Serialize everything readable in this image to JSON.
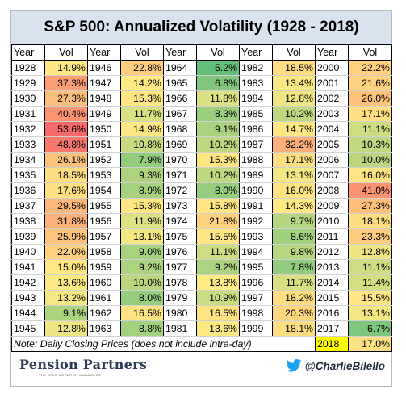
{
  "title": "S&P 500: Annualized Volatility (1928 - 2018)",
  "headers": {
    "year": "Year",
    "vol": "Vol"
  },
  "columns": [
    [
      [
        "1928",
        "14.9%"
      ],
      [
        "1929",
        "37.3%"
      ],
      [
        "1930",
        "27.3%"
      ],
      [
        "1931",
        "40.4%"
      ],
      [
        "1932",
        "53.6%"
      ],
      [
        "1933",
        "48.8%"
      ],
      [
        "1934",
        "26.1%"
      ],
      [
        "1935",
        "18.5%"
      ],
      [
        "1936",
        "17.6%"
      ],
      [
        "1937",
        "29.5%"
      ],
      [
        "1938",
        "31.8%"
      ],
      [
        "1939",
        "25.9%"
      ],
      [
        "1940",
        "22.0%"
      ],
      [
        "1941",
        "15.0%"
      ],
      [
        "1942",
        "13.6%"
      ],
      [
        "1943",
        "13.2%"
      ],
      [
        "1944",
        "9.1%"
      ],
      [
        "1945",
        "12.8%"
      ]
    ],
    [
      [
        "1946",
        "22.8%"
      ],
      [
        "1947",
        "14.2%"
      ],
      [
        "1948",
        "15.3%"
      ],
      [
        "1949",
        "11.7%"
      ],
      [
        "1950",
        "14.9%"
      ],
      [
        "1951",
        "10.8%"
      ],
      [
        "1952",
        "7.9%"
      ],
      [
        "1953",
        "9.3%"
      ],
      [
        "1954",
        "8.9%"
      ],
      [
        "1955",
        "15.3%"
      ],
      [
        "1956",
        "11.9%"
      ],
      [
        "1957",
        "13.1%"
      ],
      [
        "1958",
        "9.0%"
      ],
      [
        "1959",
        "9.2%"
      ],
      [
        "1960",
        "10.0%"
      ],
      [
        "1961",
        "8.0%"
      ],
      [
        "1962",
        "16.5%"
      ],
      [
        "1963",
        "8.8%"
      ]
    ],
    [
      [
        "1964",
        "5.2%"
      ],
      [
        "1965",
        "6.8%"
      ],
      [
        "1966",
        "11.8%"
      ],
      [
        "1967",
        "8.3%"
      ],
      [
        "1968",
        "9.1%"
      ],
      [
        "1969",
        "10.2%"
      ],
      [
        "1970",
        "15.3%"
      ],
      [
        "1971",
        "10.2%"
      ],
      [
        "1972",
        "8.0%"
      ],
      [
        "1973",
        "15.8%"
      ],
      [
        "1974",
        "21.8%"
      ],
      [
        "1975",
        "15.5%"
      ],
      [
        "1976",
        "11.1%"
      ],
      [
        "1977",
        "9.2%"
      ],
      [
        "1978",
        "13.8%"
      ],
      [
        "1979",
        "10.9%"
      ],
      [
        "1980",
        "16.5%"
      ],
      [
        "1981",
        "13.6%"
      ]
    ],
    [
      [
        "1982",
        "18.5%"
      ],
      [
        "1983",
        "13.4%"
      ],
      [
        "1984",
        "12.8%"
      ],
      [
        "1985",
        "10.2%"
      ],
      [
        "1986",
        "14.7%"
      ],
      [
        "1987",
        "32.2%"
      ],
      [
        "1988",
        "17.1%"
      ],
      [
        "1989",
        "13.1%"
      ],
      [
        "1990",
        "16.0%"
      ],
      [
        "1991",
        "14.3%"
      ],
      [
        "1992",
        "9.7%"
      ],
      [
        "1993",
        "8.6%"
      ],
      [
        "1994",
        "9.8%"
      ],
      [
        "1995",
        "7.8%"
      ],
      [
        "1996",
        "11.7%"
      ],
      [
        "1997",
        "18.2%"
      ],
      [
        "1998",
        "20.3%"
      ],
      [
        "1999",
        "18.1%"
      ]
    ],
    [
      [
        "2000",
        "22.2%"
      ],
      [
        "2001",
        "21.6%"
      ],
      [
        "2002",
        "26.0%"
      ],
      [
        "2003",
        "17.1%"
      ],
      [
        "2004",
        "11.1%"
      ],
      [
        "2005",
        "10.3%"
      ],
      [
        "2006",
        "10.0%"
      ],
      [
        "2007",
        "16.0%"
      ],
      [
        "2008",
        "41.0%"
      ],
      [
        "2009",
        "27.3%"
      ],
      [
        "2010",
        "18.1%"
      ],
      [
        "2011",
        "23.3%"
      ],
      [
        "2012",
        "12.8%"
      ],
      [
        "2013",
        "11.1%"
      ],
      [
        "2014",
        "11.4%"
      ],
      [
        "2015",
        "15.5%"
      ],
      [
        "2016",
        "13.1%"
      ],
      [
        "2017",
        "6.7%"
      ]
    ]
  ],
  "note": "Note: Daily Closing Prices (does not include intra-day)",
  "last_row": {
    "year": "2018",
    "vol": "17.0%"
  },
  "footer": {
    "logo": "Pension Partners",
    "logo_sub": "THE ATAC ROTATION MANAGERS",
    "twitter_handle": "@CharlieBilello"
  },
  "colors": {
    "title_bg": "#d9e3ef",
    "highlight_2018": "#ffff00",
    "low": "#63be7b",
    "mid": "#ffeb84",
    "high": "#f8696b"
  }
}
